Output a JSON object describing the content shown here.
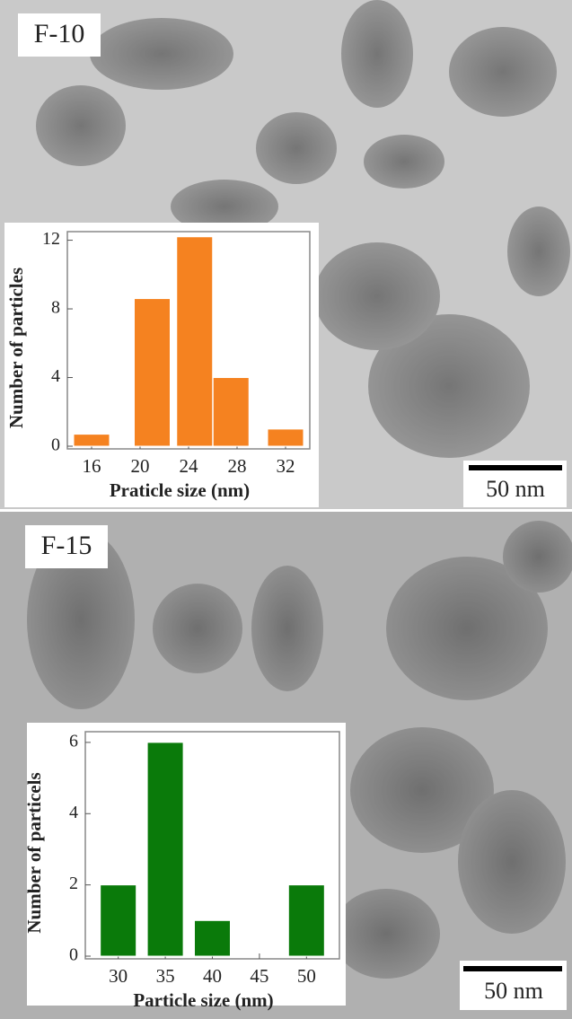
{
  "panels": [
    {
      "label": "F-10",
      "scale_bar": "50 nm"
    },
    {
      "label": "F-15",
      "scale_bar": "50 nm"
    }
  ],
  "chart_data": [
    {
      "type": "bar",
      "x_label": "Praticle size (nm)",
      "y_label": "Number of particles",
      "x": [
        16,
        21,
        24.5,
        27.5,
        32
      ],
      "values": [
        0.7,
        8.6,
        12.2,
        4,
        1
      ],
      "color": "#f58220",
      "xlim": [
        14,
        34
      ],
      "ylim": [
        0,
        12.5
      ],
      "xticks": [
        16,
        20,
        24,
        28,
        32
      ],
      "yticks": [
        0,
        4,
        8,
        12
      ]
    },
    {
      "type": "bar",
      "x_label": "Particle size (nm)",
      "y_label": "Number of particels",
      "x": [
        30,
        35,
        40,
        50
      ],
      "values": [
        2,
        6,
        1,
        2
      ],
      "color": "#0a7a0a",
      "xlim": [
        26.5,
        53.5
      ],
      "ylim": [
        0,
        6.3
      ],
      "xticks": [
        30,
        35,
        40,
        45,
        50
      ],
      "yticks": [
        0,
        2,
        4,
        6
      ]
    }
  ]
}
